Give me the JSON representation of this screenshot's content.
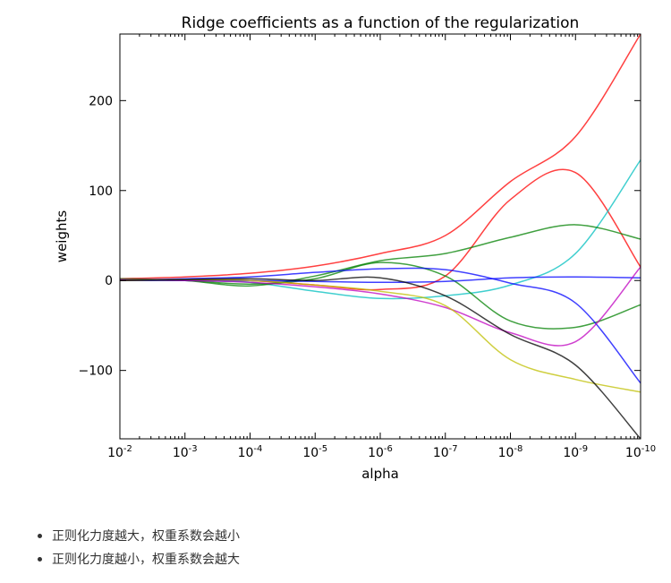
{
  "chart_data": {
    "type": "line",
    "title": "Ridge coefficients as a function of the regularization",
    "xlabel": "alpha",
    "ylabel": "weights",
    "xscale": "log-reversed",
    "x": [
      -2,
      -3,
      -4,
      -5,
      -6,
      -7,
      -8,
      -9,
      -10
    ],
    "xtick_labels": [
      {
        "base": "10",
        "exp": "-2"
      },
      {
        "base": "10",
        "exp": "-3"
      },
      {
        "base": "10",
        "exp": "-4"
      },
      {
        "base": "10",
        "exp": "-5"
      },
      {
        "base": "10",
        "exp": "-6"
      },
      {
        "base": "10",
        "exp": "-7"
      },
      {
        "base": "10",
        "exp": "-8"
      },
      {
        "base": "10",
        "exp": "-9"
      },
      {
        "base": "10",
        "exp": "-10"
      }
    ],
    "yticks": [
      200,
      100,
      0,
      -100
    ],
    "ytick_labels": [
      "200",
      "100",
      "0",
      "−100"
    ],
    "xlim": [
      -2,
      -10
    ],
    "ylim": [
      -176,
      274
    ],
    "grid": false,
    "series": [
      {
        "name": "red",
        "color": "#ff0000",
        "values": [
          2,
          4,
          8,
          16,
          30,
          50,
          110,
          160,
          274
        ]
      },
      {
        "name": "red-2",
        "color": "#ff0000",
        "values": [
          1,
          1,
          0,
          -5,
          -10,
          5,
          90,
          120,
          15
        ]
      },
      {
        "name": "cyan",
        "color": "#00bfbf",
        "values": [
          1,
          0,
          -2,
          -12,
          -20,
          -17,
          -5,
          30,
          134
        ]
      },
      {
        "name": "green",
        "color": "#008000",
        "values": [
          2,
          0,
          -6,
          5,
          22,
          30,
          48,
          62,
          46
        ]
      },
      {
        "name": "green-2",
        "color": "#008000",
        "values": [
          1,
          0,
          -4,
          2,
          20,
          5,
          -45,
          -52,
          -27
        ]
      },
      {
        "name": "blue",
        "color": "#0000ff",
        "values": [
          0,
          2,
          4,
          9,
          13,
          12,
          -3,
          -25,
          -114
        ]
      },
      {
        "name": "blue-2",
        "color": "#0000ff",
        "values": [
          0,
          0,
          0,
          -1,
          -2,
          -1,
          3,
          4,
          3
        ]
      },
      {
        "name": "magenta",
        "color": "#bf00bf",
        "values": [
          1,
          0,
          -2,
          -7,
          -15,
          -30,
          -58,
          -68,
          15
        ]
      },
      {
        "name": "yellow",
        "color": "#bfbf00",
        "values": [
          0,
          1,
          0,
          -5,
          -12,
          -28,
          -88,
          -110,
          -124
        ]
      },
      {
        "name": "black",
        "color": "#000000",
        "values": [
          0,
          1,
          2,
          0,
          3,
          -17,
          -60,
          -94,
          -176
        ]
      }
    ]
  },
  "notes": [
    "正则化力度越大，权重系数会越小",
    "正则化力度越小，权重系数会越大"
  ]
}
